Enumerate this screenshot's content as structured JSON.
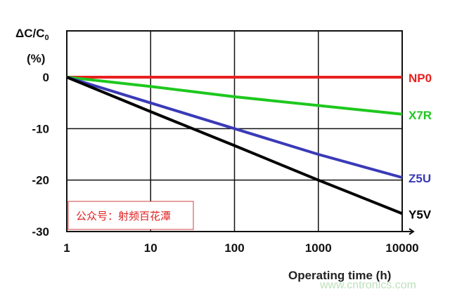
{
  "chart_data": {
    "type": "line",
    "title": "",
    "ylabel_line1": "ΔC/C",
    "ylabel_sub": "0",
    "ylabel_line2": "(%)",
    "xlabel": "Operating time (h)",
    "xscale": "log",
    "xlim": [
      1,
      10000
    ],
    "ylim": [
      -30,
      9
    ],
    "grid": true,
    "x_ticks": [
      "1",
      "10",
      "100",
      "1000",
      "10000"
    ],
    "y_ticks": [
      "0",
      "-10",
      "-20",
      "-30"
    ],
    "x": [
      1,
      10,
      100,
      1000,
      10000
    ],
    "series": [
      {
        "name": "NP0",
        "color": "#e8201e",
        "values": [
          0,
          0,
          0,
          0,
          0
        ]
      },
      {
        "name": "X7R",
        "color": "#1ec81e",
        "values": [
          0,
          -1.8,
          -3.8,
          -5.5,
          -7.2
        ]
      },
      {
        "name": "Z5U",
        "color": "#3a3ab8",
        "values": [
          0,
          -5,
          -10,
          -15,
          -19.5
        ]
      },
      {
        "name": "Y5V",
        "color": "#000000",
        "values": [
          0,
          -6.7,
          -13.3,
          -20,
          -26.5
        ]
      }
    ],
    "legend": "inline-right"
  },
  "annotation": {
    "text": "公众号：射频百花潭",
    "color": "#e02020"
  },
  "watermark": "www.cntronics.com"
}
